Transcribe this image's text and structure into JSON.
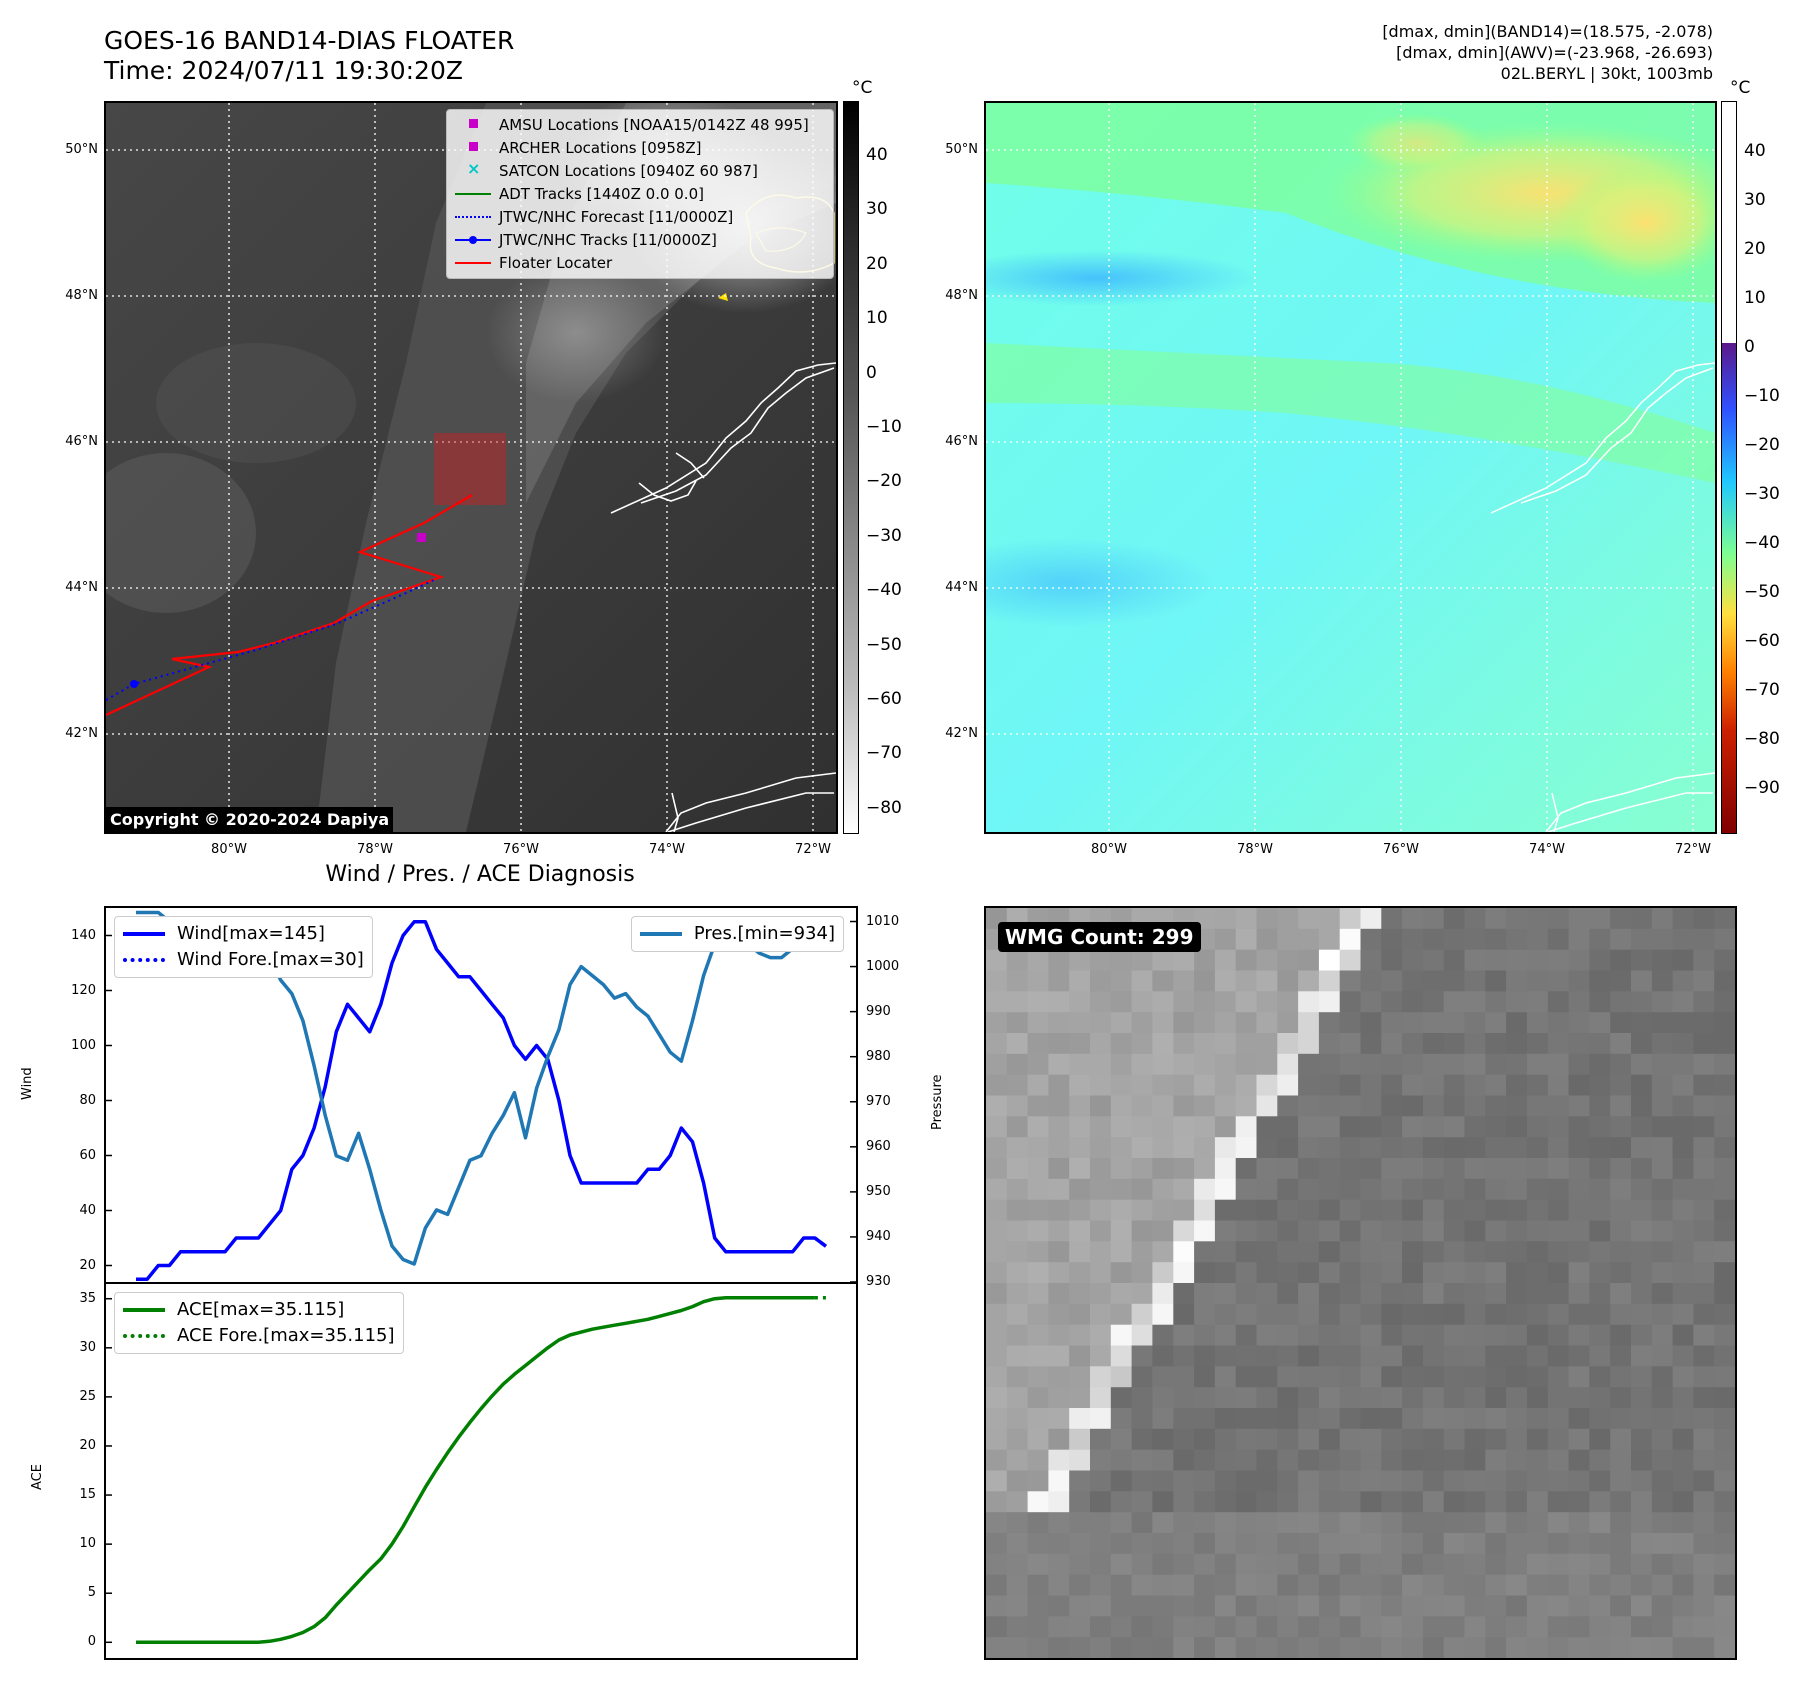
{
  "header": {
    "title_line1": "GOES-16 BAND14-DIAS FLOATER",
    "title_line2": "Time: 2024/07/11 19:30:20Z",
    "info_line1": "[dmax, dmin](BAND14)=(18.575, -2.078)",
    "info_line2": "[dmax, dmin](AWV)=(-23.968, -26.693)",
    "info_line3": "02L.BERYL | 30kt, 1003mb"
  },
  "map": {
    "lat_labels": [
      "50°N",
      "48°N",
      "46°N",
      "44°N",
      "42°N"
    ],
    "lon_labels": [
      "80°W",
      "78°W",
      "76°W",
      "74°W",
      "72°W"
    ],
    "copyright": "Copyright © 2020-2024 Dapiya",
    "legend": [
      {
        "label": "AMSU Locations [NOAA15/0142Z 48 995]",
        "color": "#c800c8",
        "marker": "square"
      },
      {
        "label": "ARCHER Locations [0958Z]",
        "color": "#c800c8",
        "marker": "square"
      },
      {
        "label": "SATCON Locations [0940Z 60 987]",
        "color": "#00c8c8",
        "marker": "x"
      },
      {
        "label": "ADT Tracks [1440Z 0.0 0.0]",
        "color": "#008000",
        "marker": "line"
      },
      {
        "label": "JTWC/NHC Forecast [11/0000Z]",
        "color": "#0000ff",
        "marker": "dotted"
      },
      {
        "label": "JTWC/NHC Tracks [11/0000Z]",
        "color": "#0000ff",
        "marker": "line-dot"
      },
      {
        "label": "Floater Locater",
        "color": "#ff0000",
        "marker": "line"
      }
    ]
  },
  "colorbars": {
    "unit": "°C",
    "left_ticks": [
      "40",
      "30",
      "20",
      "10",
      "0",
      "−10",
      "−20",
      "−30",
      "−40",
      "−50",
      "−60",
      "−70",
      "−80"
    ],
    "right_ticks": [
      "40",
      "30",
      "20",
      "10",
      "0",
      "−10",
      "−20",
      "−30",
      "−40",
      "−50",
      "−60",
      "−70",
      "−80",
      "−90"
    ]
  },
  "wmg": {
    "label": "WMG Count: 299"
  },
  "chart_data": [
    {
      "type": "line",
      "title": "Wind / Pres. / ACE Diagnosis",
      "ylabel": "Wind",
      "y2label": "Pressure",
      "ylim": [
        14,
        150
      ],
      "y2lim": [
        930,
        1013
      ],
      "yticks": [
        20,
        40,
        60,
        80,
        100,
        120,
        140
      ],
      "y2ticks": [
        930,
        940,
        950,
        960,
        970,
        980,
        990,
        1000,
        1010
      ],
      "legend_left": [
        "Wind[max=145]",
        "Wind Fore.[max=30]"
      ],
      "legend_right": [
        "Pres.[min=934]"
      ],
      "series": [
        {
          "name": "Wind[max=145]",
          "color": "#0000ff",
          "axis": "left",
          "values": [
            15,
            15,
            20,
            20,
            25,
            25,
            25,
            25,
            25,
            30,
            30,
            30,
            35,
            40,
            55,
            60,
            70,
            85,
            105,
            115,
            110,
            105,
            115,
            130,
            140,
            145,
            145,
            135,
            130,
            125,
            125,
            120,
            115,
            110,
            100,
            95,
            100,
            95,
            80,
            60,
            50,
            50,
            50,
            50,
            50,
            50,
            55,
            55,
            60,
            70,
            65,
            50,
            30,
            25,
            25,
            25,
            25,
            25,
            25,
            25,
            30,
            30,
            27
          ]
        },
        {
          "name": "Wind Fore.[max=30]",
          "color": "#0000ff",
          "axis": "left",
          "dotted": true,
          "values": [
            null,
            null,
            null,
            null,
            null,
            null,
            null,
            null,
            null,
            null,
            null,
            null,
            null,
            null,
            null,
            null,
            null,
            null,
            null,
            null,
            null,
            null,
            null,
            null,
            null,
            null,
            null,
            null,
            null,
            null,
            null,
            null,
            null,
            null,
            null,
            null,
            null,
            null,
            null,
            null,
            null,
            null,
            null,
            null,
            null,
            null,
            null,
            null,
            null,
            null,
            null,
            null,
            null,
            null,
            null,
            null,
            null,
            null,
            null,
            null,
            null,
            30,
            27
          ]
        },
        {
          "name": "Pres.[min=934]",
          "color": "#1f77b4",
          "axis": "right",
          "values": [
            1012,
            1012,
            1012,
            1010,
            1009,
            1008,
            1007,
            1006,
            1006,
            1005,
            1005,
            1004,
            1002,
            997,
            994,
            988,
            978,
            967,
            958,
            957,
            963,
            955,
            946,
            938,
            935,
            934,
            942,
            946,
            945,
            951,
            957,
            958,
            963,
            967,
            972,
            962,
            973,
            980,
            986,
            996,
            1000,
            998,
            996,
            993,
            994,
            991,
            989,
            985,
            981,
            979,
            988,
            998,
            1005,
            1005,
            1006,
            1005,
            1003,
            1002,
            1002,
            1004
          ]
        }
      ]
    },
    {
      "type": "line",
      "ylabel": "ACE",
      "ylim": [
        -1.6,
        36.5
      ],
      "yticks": [
        0,
        5,
        10,
        15,
        20,
        25,
        30,
        35
      ],
      "legend": [
        "ACE[max=35.115]",
        "ACE Fore.[max=35.115]"
      ],
      "series": [
        {
          "name": "ACE[max=35.115]",
          "color": "#008000",
          "values": [
            0,
            0,
            0,
            0,
            0,
            0,
            0,
            0,
            0,
            0,
            0,
            0,
            0.1,
            0.3,
            0.6,
            1.0,
            1.6,
            2.5,
            3.8,
            5.0,
            6.2,
            7.4,
            8.5,
            10.0,
            11.8,
            13.8,
            15.8,
            17.6,
            19.3,
            20.9,
            22.4,
            23.8,
            25.1,
            26.3,
            27.3,
            28.2,
            29.1,
            30.0,
            30.8,
            31.3,
            31.6,
            31.9,
            32.1,
            32.3,
            32.5,
            32.7,
            32.9,
            33.2,
            33.5,
            33.8,
            34.2,
            34.7,
            35.0,
            35.1,
            35.1,
            35.1,
            35.1,
            35.1,
            35.1,
            35.1,
            35.1,
            35.1
          ]
        },
        {
          "name": "ACE Fore.[max=35.115]",
          "color": "#008000",
          "dotted": true,
          "values": [
            null,
            null,
            null,
            null,
            null,
            null,
            null,
            null,
            null,
            null,
            null,
            null,
            null,
            null,
            null,
            null,
            null,
            null,
            null,
            null,
            null,
            null,
            null,
            null,
            null,
            null,
            null,
            null,
            null,
            null,
            null,
            null,
            null,
            null,
            null,
            null,
            null,
            null,
            null,
            null,
            null,
            null,
            null,
            null,
            null,
            null,
            null,
            null,
            null,
            null,
            null,
            null,
            null,
            null,
            null,
            null,
            null,
            null,
            null,
            null,
            null,
            35.1,
            35.1
          ]
        }
      ]
    }
  ]
}
